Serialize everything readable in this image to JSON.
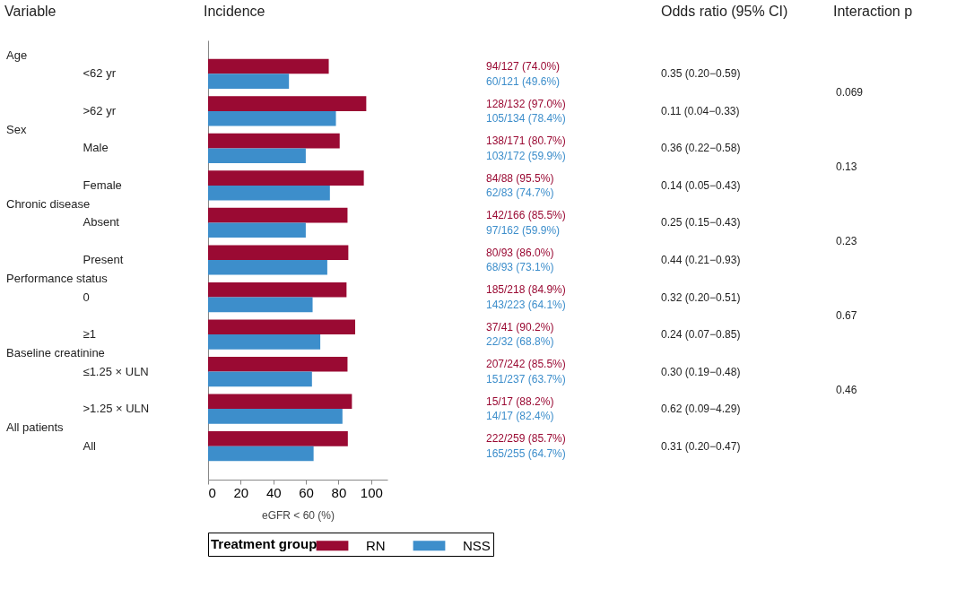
{
  "chart_data": {
    "type": "bar",
    "orientation": "horizontal",
    "categories": [
      "<62 yr",
      ">62 yr",
      "Male",
      "Female",
      "Absent",
      "Present",
      "0",
      "≥1",
      "≤1.25 × ULN",
      ">1.25 × ULN",
      "All"
    ],
    "series": [
      {
        "name": "RN",
        "color": "#9a0a33",
        "values": [
          74.0,
          97.0,
          80.7,
          95.5,
          85.5,
          86.0,
          84.9,
          90.2,
          85.5,
          88.2,
          85.7
        ]
      },
      {
        "name": "NSS",
        "color": "#3d8ecb",
        "values": [
          49.6,
          78.4,
          59.9,
          74.7,
          59.9,
          73.1,
          64.1,
          68.8,
          63.7,
          82.4,
          64.7
        ]
      }
    ],
    "xlim": [
      0,
      110
    ],
    "xticks": [
      0,
      20,
      40,
      60,
      80,
      100
    ],
    "xlabel": "eGFR < 60 (%)",
    "legend_title": "Treatment group",
    "legend": "bottom",
    "grid": false,
    "annotations": [
      "Variable",
      "Incidence",
      "Odds ratio (95% CI)",
      "Interaction p",
      "Age",
      "Sex",
      "Chronic disease",
      "Performance status",
      "Baseline creatinine",
      "All patients",
      "0.35 (0.20−0.59)",
      "0.11 (0.04−0.33)",
      "0.36 (0.22−0.58)",
      "0.14 (0.05−0.43)",
      "0.25 (0.15−0.43)",
      "0.44 (0.21−0.93)",
      "0.32 (0.20−0.51)",
      "0.24 (0.07−0.85)",
      "0.30 (0.19−0.48)",
      "0.62 (0.09−4.29)",
      "0.31 (0.20−0.47)",
      "0.069",
      "0.13",
      "0.23",
      "0.67",
      "0.46",
      "94/127 (74.0%)",
      "60/121 (49.6%)",
      "128/132 (97.0%)",
      "105/134 (78.4%)",
      "138/171 (80.7%)",
      "103/172 (59.9%)",
      "84/88 (95.5%)",
      "62/83 (74.7%)",
      "142/166 (85.5%)",
      "97/162 (59.9%)",
      "80/93 (86.0%)",
      "68/93 (73.1%)",
      "185/218 (84.9%)",
      "143/223 (64.1%)",
      "37/41 (90.2%)",
      "22/32 (68.8%)",
      "207/242 (85.5%)",
      "151/237 (63.7%)",
      "15/17 (88.2%)",
      "14/17 (82.4%)",
      "222/259 (85.7%)",
      "165/255 (64.7%)"
    ]
  }
}
